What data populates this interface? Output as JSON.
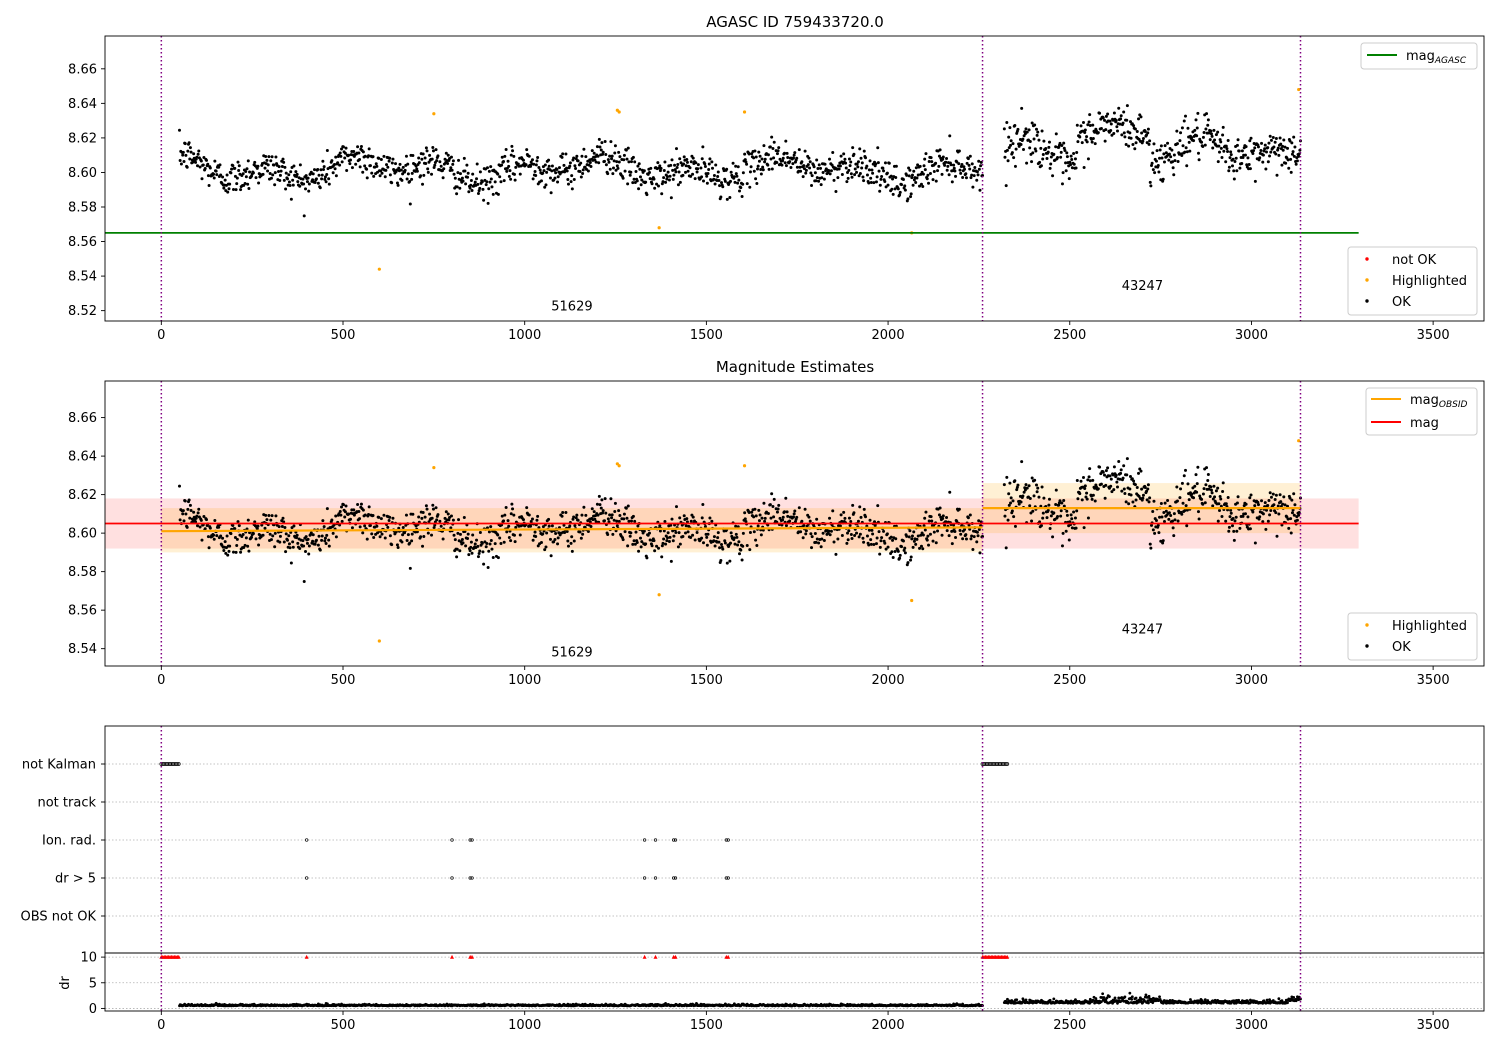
{
  "chart_data": [
    {
      "type": "scatter",
      "title": "AGASC ID 759433720.0",
      "xlim": [
        -155,
        3640
      ],
      "ylim": [
        8.514,
        8.679
      ],
      "xticks": [
        0,
        500,
        1000,
        1500,
        2000,
        2500,
        3000,
        3500
      ],
      "xtick_labels": [
        "0",
        "500",
        "1000",
        "1500",
        "2000",
        "2500",
        "3000",
        "3500"
      ],
      "yticks": [
        8.52,
        8.54,
        8.56,
        8.58,
        8.6,
        8.62,
        8.64,
        8.66
      ],
      "ytick_labels": [
        "8.52",
        "8.54",
        "8.56",
        "8.58",
        "8.60",
        "8.62",
        "8.64",
        "8.66"
      ],
      "vlines": [
        0,
        2260,
        3135
      ],
      "hline": {
        "label": "mag",
        "label_sub": "AGASC",
        "y": 8.565,
        "x": [
          -155,
          3295
        ],
        "color": "#008000"
      },
      "annotations": [
        {
          "text": "51629",
          "x": 1130,
          "y": 8.52
        },
        {
          "text": "43247",
          "x": 2700,
          "y": 8.532
        }
      ],
      "legend_lines": [
        {
          "label": "mag",
          "sub": "AGASC",
          "color": "#008000"
        }
      ],
      "legend_points": [
        {
          "label": "not OK",
          "color": "#ff0000"
        },
        {
          "label": "Highlighted",
          "color": "#ffa500"
        },
        {
          "label": "OK",
          "color": "#000000"
        }
      ],
      "segments": [
        {
          "x": [
            50,
            2260
          ],
          "base": 8.602,
          "amp": 0.008,
          "noise": 0.005
        },
        {
          "x": [
            2320,
            3135
          ],
          "base": 8.611,
          "amp": 0.009,
          "noise": 0.006
        }
      ],
      "highlighted": [
        {
          "x": 600,
          "y": 8.544
        },
        {
          "x": 750,
          "y": 8.634
        },
        {
          "x": 1255,
          "y": 8.636
        },
        {
          "x": 1260,
          "y": 8.635
        },
        {
          "x": 1370,
          "y": 8.568
        },
        {
          "x": 1605,
          "y": 8.635
        },
        {
          "x": 2065,
          "y": 8.565
        },
        {
          "x": 3130,
          "y": 8.648
        }
      ]
    },
    {
      "type": "scatter",
      "title": "Magnitude Estimates",
      "xlim": [
        -155,
        3640
      ],
      "ylim": [
        8.531,
        8.679
      ],
      "xticks": [
        0,
        500,
        1000,
        1500,
        2000,
        2500,
        3000,
        3500
      ],
      "xtick_labels": [
        "0",
        "500",
        "1000",
        "1500",
        "2000",
        "2500",
        "3000",
        "3500"
      ],
      "yticks": [
        8.54,
        8.56,
        8.58,
        8.6,
        8.62,
        8.64,
        8.66
      ],
      "ytick_labels": [
        "8.54",
        "8.56",
        "8.58",
        "8.60",
        "8.62",
        "8.64",
        "8.66"
      ],
      "vlines": [
        0,
        2260,
        3135
      ],
      "mag_line": {
        "label": "mag",
        "y": 8.605,
        "band": [
          8.592,
          8.618
        ],
        "x": [
          -155,
          3295
        ],
        "color": "#ff0000"
      },
      "obsid_lines": [
        {
          "x": [
            0,
            2260
          ],
          "y": [
            8.601,
            8.603
          ],
          "band": [
            8.59,
            8.613
          ]
        },
        {
          "x": [
            2260,
            3135
          ],
          "y": [
            8.613,
            8.613
          ],
          "band": [
            8.6,
            8.626
          ]
        }
      ],
      "annotations": [
        {
          "text": "51629",
          "x": 1130,
          "y": 8.536
        },
        {
          "text": "43247",
          "x": 2700,
          "y": 8.548
        }
      ],
      "legend_lines": [
        {
          "label": "mag",
          "sub": "OBSID",
          "color": "#ffa500"
        },
        {
          "label": "mag",
          "sub": "",
          "color": "#ff0000"
        }
      ],
      "legend_points": [
        {
          "label": "Highlighted",
          "color": "#ffa500"
        },
        {
          "label": "OK",
          "color": "#000000"
        }
      ]
    },
    {
      "type": "scatter",
      "title": "",
      "xlim": [
        -155,
        3640
      ],
      "flag_rows": [
        "not Kalman",
        "not track",
        "Ion. rad.",
        "dr > 5",
        "OBS not OK"
      ],
      "flag_points": {
        "not Kalman": [
          [
            0,
            50
          ],
          [
            2260,
            2330
          ]
        ],
        "not track": [],
        "Ion. rad.": [
          400,
          800,
          850,
          855,
          1330,
          1360,
          1410,
          1415,
          1555,
          1560
        ],
        "dr > 5": [
          400,
          800,
          850,
          855,
          1330,
          1360,
          1410,
          1415,
          1555,
          1560
        ],
        "OBS not OK": []
      },
      "vlines": [
        0,
        2260,
        3135
      ]
    },
    {
      "type": "scatter",
      "title": "",
      "ylabel": "dr",
      "xlim": [
        -155,
        3640
      ],
      "ylim": [
        -0.5,
        10.8
      ],
      "xticks": [
        0,
        500,
        1000,
        1500,
        2000,
        2500,
        3000,
        3500
      ],
      "xtick_labels": [
        "0",
        "500",
        "1000",
        "1500",
        "2000",
        "2500",
        "3000",
        "3500"
      ],
      "yticks": [
        0,
        5,
        10
      ],
      "ytick_labels": [
        "0",
        "5",
        "10"
      ],
      "vlines": [
        0,
        2260,
        3135
      ],
      "capped_markers_x": [
        [
          0,
          50
        ],
        [
          2260,
          2330
        ],
        400,
        800,
        850,
        855,
        1330,
        1360,
        1410,
        1415,
        1555,
        1560
      ],
      "capped_value": 10,
      "segments": [
        {
          "x": [
            50,
            2260
          ],
          "base": 0.5,
          "noise": 0.15
        },
        {
          "x": [
            2320,
            3135
          ],
          "base": 1.0,
          "noise": 0.3
        }
      ]
    }
  ]
}
